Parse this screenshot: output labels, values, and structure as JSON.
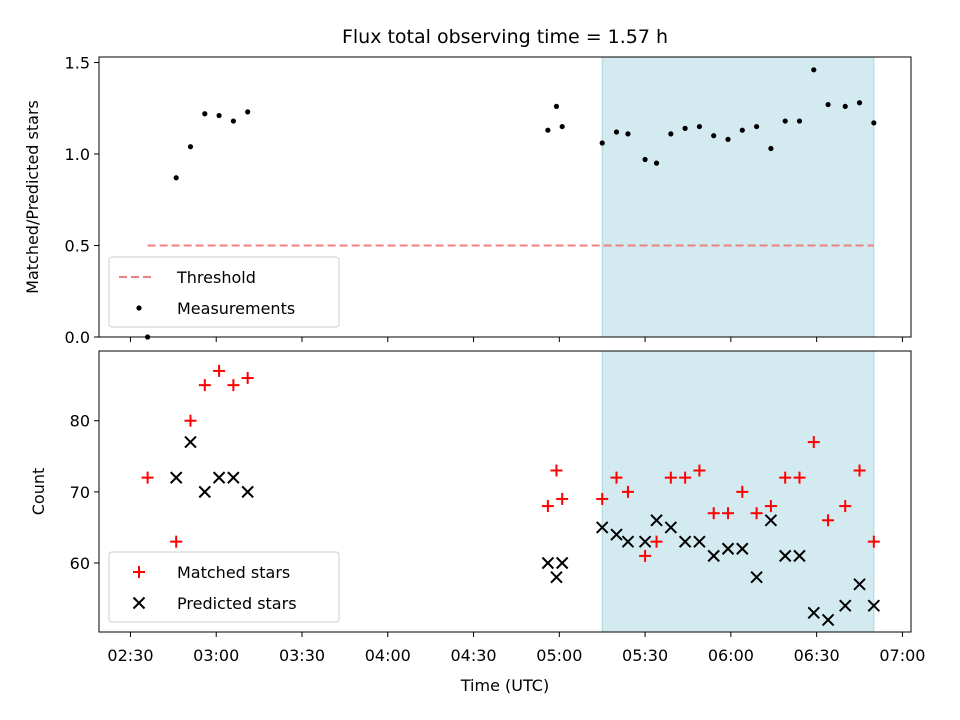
{
  "chart_data": {
    "title": "Flux total observing time = 1.57 h",
    "xlabel": "Time (UTC)",
    "x_tick_labels": [
      "02:30",
      "03:00",
      "03:30",
      "04:00",
      "04:30",
      "05:00",
      "05:30",
      "06:00",
      "06:30",
      "07:00"
    ],
    "x_tick_values_min": [
      150,
      180,
      210,
      240,
      270,
      300,
      330,
      360,
      390,
      420
    ],
    "xlim_min": [
      139,
      423
    ],
    "shaded_interval_min": [
      315,
      410
    ],
    "shade_color": "#d3eaf0",
    "panels": [
      {
        "type": "scatter",
        "ylabel": "Matched/Predicted stars",
        "ylim": [
          0,
          1.53
        ],
        "y_ticks": [
          0.0,
          0.5,
          1.0,
          1.5
        ],
        "y_tick_labels": [
          "0.0",
          "0.5",
          "1.0",
          "1.5"
        ],
        "legend_position": "bottom-left",
        "threshold": {
          "name": "Threshold",
          "value": 0.5,
          "x_range_min": [
            156,
            410
          ],
          "color": "#f08080",
          "style": "dashed"
        },
        "series": [
          {
            "name": "Measurements",
            "color": "#000000",
            "marker": "dot",
            "x_min": [
              156,
              166,
              171,
              176,
              181,
              186,
              191,
              296,
              299,
              301,
              315,
              320,
              324,
              330,
              334,
              339,
              344,
              349,
              354,
              359,
              364,
              369,
              374,
              379,
              384,
              389,
              394,
              400,
              405,
              410
            ],
            "y": [
              0.0,
              0.87,
              1.04,
              1.22,
              1.21,
              1.18,
              1.23,
              1.13,
              1.26,
              1.15,
              1.06,
              1.12,
              1.11,
              0.97,
              0.95,
              1.11,
              1.14,
              1.15,
              1.1,
              1.08,
              1.13,
              1.15,
              1.03,
              1.18,
              1.18,
              1.46,
              1.27,
              1.26,
              1.28,
              1.17
            ]
          }
        ]
      },
      {
        "type": "scatter",
        "ylabel": "Count",
        "ylim": [
          50.3,
          89.8
        ],
        "y_ticks": [
          60,
          70,
          80
        ],
        "y_tick_labels": [
          "60",
          "70",
          "80"
        ],
        "legend_position": "bottom-left",
        "series": [
          {
            "name": "Matched stars",
            "color": "#ff0000",
            "marker": "plus",
            "x_min": [
              156,
              166,
              171,
              176,
              181,
              186,
              191,
              296,
              299,
              301,
              315,
              320,
              324,
              330,
              334,
              339,
              344,
              349,
              354,
              359,
              364,
              369,
              374,
              379,
              384,
              389,
              394,
              400,
              405,
              410
            ],
            "y": [
              72,
              63,
              80,
              85,
              87,
              85,
              86,
              68,
              73,
              69,
              69,
              72,
              70,
              61,
              63,
              72,
              72,
              73,
              67,
              67,
              70,
              67,
              68,
              72,
              72,
              77,
              66,
              68,
              73,
              63
            ]
          },
          {
            "name": "Predicted stars",
            "color": "#000000",
            "marker": "x",
            "x_min": [
              166,
              171,
              176,
              181,
              186,
              191,
              296,
              299,
              301,
              315,
              320,
              324,
              330,
              334,
              339,
              344,
              349,
              354,
              359,
              364,
              369,
              374,
              379,
              384,
              389,
              394,
              400,
              405,
              410
            ],
            "y": [
              72,
              77,
              70,
              72,
              72,
              70,
              60,
              58,
              60,
              65,
              64,
              63,
              63,
              66,
              65,
              63,
              63,
              61,
              62,
              62,
              58,
              66,
              61,
              61,
              53,
              52,
              54,
              57,
              54
            ]
          }
        ]
      }
    ]
  }
}
